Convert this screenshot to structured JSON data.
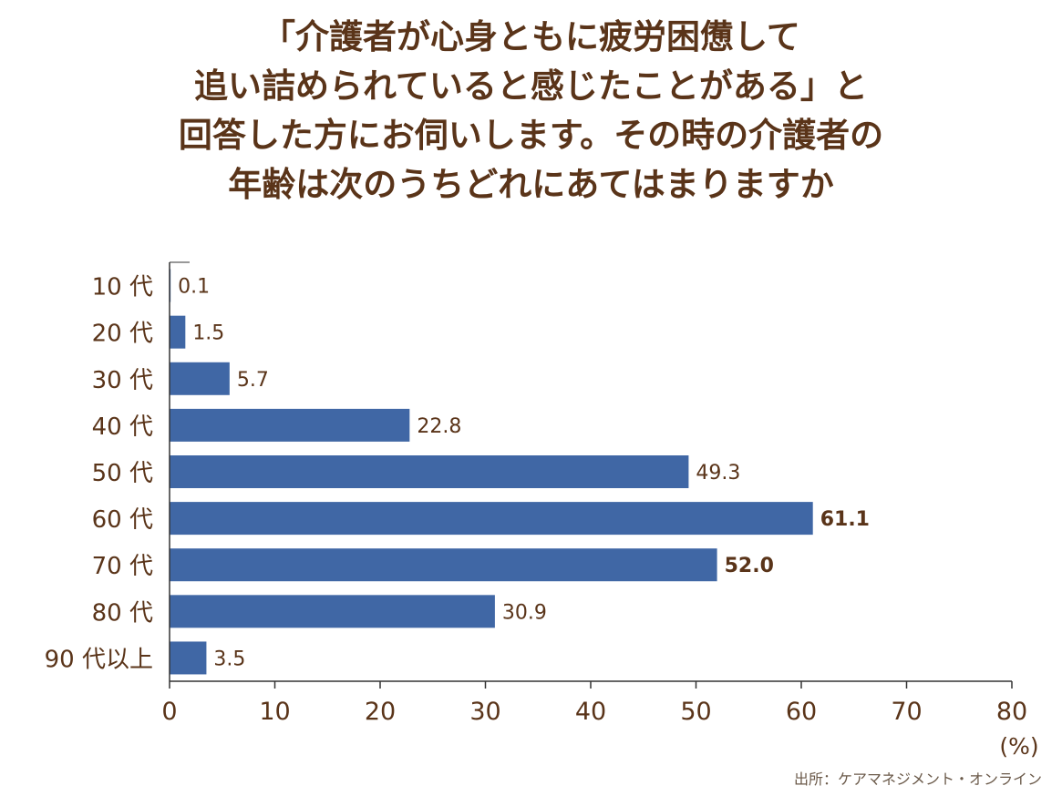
{
  "title_lines": [
    "「介護者が心身ともに疲労困憊して",
    "追い詰められていると感じたことがある」と",
    "回答した方にお伺いします。その時の介護者の",
    "年齢は次のうちどれにあてはまりますか"
  ],
  "source": "出所：ケアマネジメント・オンライン",
  "colors": {
    "bar": "#4067a5",
    "text": "#5a3419",
    "axis": "#333333"
  },
  "chart_data": {
    "type": "bar",
    "orientation": "horizontal",
    "title": "「介護者が心身ともに疲労困憊して追い詰められていると感じたことがある」と回答した方にお伺いします。その時の介護者の年齢は次のうちどれにあてはまりますか",
    "categories": [
      "10 代",
      "20 代",
      "30 代",
      "40 代",
      "50 代",
      "60 代",
      "70 代",
      "80 代",
      "90 代以上"
    ],
    "values": [
      0.1,
      1.5,
      5.7,
      22.8,
      49.3,
      61.1,
      52.0,
      30.9,
      3.5
    ],
    "value_labels": [
      "0.1",
      "1.5",
      "5.7",
      "22.8",
      "49.3",
      "61.1",
      "52.0",
      "30.9",
      "3.5"
    ],
    "bold_labels": [
      false,
      false,
      false,
      false,
      false,
      true,
      true,
      false,
      false
    ],
    "xlim": [
      0,
      80
    ],
    "xticks": [
      0,
      10,
      20,
      30,
      40,
      50,
      60,
      70,
      80
    ],
    "xlabel": "(%)",
    "ylabel": "",
    "grid": false
  }
}
